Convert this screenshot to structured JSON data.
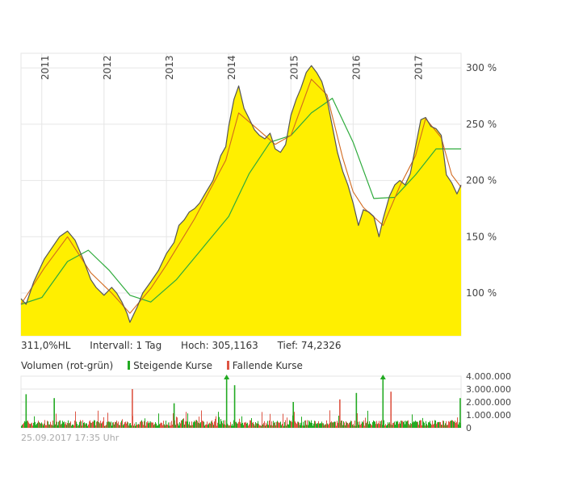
{
  "colors": {
    "area_fill": "#ffef00",
    "price_line": "#555555",
    "ma_short": "#d2691e",
    "ma_long": "#2eab3c",
    "volume_up": "#22aa22",
    "volume_down": "#dd5544",
    "grid": "#e6e6e6"
  },
  "stats": {
    "performance": "311,0%HL",
    "interval": "Intervall: 1 Tag",
    "high": "Hoch: 305,1163",
    "low": "Tief: 74,2326"
  },
  "volume_legend": {
    "title": "Volumen (rot-grün)",
    "rising": "Steigende Kurse",
    "falling": "Fallende Kurse"
  },
  "timestamp": "25.09.2017 17:35 Uhr",
  "chart_data": [
    {
      "type": "area",
      "x_axis": {
        "type": "date",
        "range": [
          "2010-09-01",
          "2017-09-25"
        ],
        "tick_labels": [
          "2011",
          "2012",
          "2013",
          "2014",
          "2015",
          "2016",
          "2017"
        ]
      },
      "y_axis": {
        "range": [
          62,
          313
        ],
        "ticks": [
          100,
          150,
          200,
          250,
          300
        ],
        "tick_labels": [
          "100 %",
          "150 %",
          "200 %",
          "250 %",
          "300 %"
        ],
        "position": "right"
      },
      "grid": true,
      "price": {
        "x": [
          "2010-09-01",
          "2010-10-01",
          "2010-11-15",
          "2011-01-15",
          "2011-03-01",
          "2011-04-15",
          "2011-06-01",
          "2011-07-15",
          "2011-09-01",
          "2011-10-15",
          "2011-11-15",
          "2012-01-01",
          "2012-02-15",
          "2012-03-15",
          "2012-04-15",
          "2012-05-15",
          "2012-06-01",
          "2012-07-15",
          "2012-08-15",
          "2012-10-01",
          "2012-11-15",
          "2013-01-01",
          "2013-02-15",
          "2013-03-15",
          "2013-04-15",
          "2013-05-15",
          "2013-06-15",
          "2013-07-15",
          "2013-08-15",
          "2013-10-01",
          "2013-11-15",
          "2013-12-15",
          "2014-01-01",
          "2014-02-01",
          "2014-03-01",
          "2014-04-01",
          "2014-05-01",
          "2014-06-01",
          "2014-07-01",
          "2014-08-01",
          "2014-09-01",
          "2014-10-01",
          "2014-11-01",
          "2014-12-01",
          "2015-01-01",
          "2015-02-01",
          "2015-03-01",
          "2015-04-01",
          "2015-05-01",
          "2015-06-01",
          "2015-07-01",
          "2015-08-01",
          "2015-09-01",
          "2015-10-01",
          "2015-11-01",
          "2015-12-01",
          "2016-01-01",
          "2016-02-01",
          "2016-03-01",
          "2016-04-01",
          "2016-05-01",
          "2016-06-01",
          "2016-06-25",
          "2016-08-01",
          "2016-09-01",
          "2016-10-01",
          "2016-11-01",
          "2016-12-01",
          "2017-01-01",
          "2017-02-01",
          "2017-03-01",
          "2017-04-01",
          "2017-05-01",
          "2017-06-01",
          "2017-07-01",
          "2017-08-01",
          "2017-09-01",
          "2017-09-25"
        ],
        "y": [
          95,
          90,
          110,
          130,
          140,
          150,
          155,
          147,
          130,
          112,
          105,
          98,
          105,
          100,
          92,
          82,
          74,
          88,
          100,
          110,
          120,
          135,
          145,
          160,
          165,
          172,
          175,
          180,
          188,
          200,
          222,
          230,
          248,
          272,
          284,
          264,
          255,
          245,
          240,
          237,
          242,
          228,
          225,
          232,
          258,
          272,
          282,
          296,
          302,
          296,
          288,
          272,
          248,
          225,
          208,
          196,
          180,
          160,
          174,
          172,
          168,
          150,
          166,
          186,
          196,
          200,
          196,
          206,
          230,
          254,
          256,
          248,
          246,
          240,
          205,
          198,
          188,
          196
        ]
      },
      "ma_short": {
        "x": [
          "2010-09-01",
          "2011-01-15",
          "2011-06-01",
          "2011-10-15",
          "2012-02-15",
          "2012-06-01",
          "2012-10-01",
          "2013-01-01",
          "2013-06-15",
          "2013-12-15",
          "2014-03-01",
          "2014-06-01",
          "2014-10-01",
          "2015-01-01",
          "2015-05-01",
          "2015-08-01",
          "2015-11-01",
          "2016-01-01",
          "2016-03-01",
          "2016-06-25",
          "2016-10-01",
          "2017-01-01",
          "2017-03-01",
          "2017-06-01",
          "2017-08-01",
          "2017-09-25"
        ],
        "y": [
          90,
          122,
          150,
          118,
          100,
          82,
          104,
          125,
          166,
          218,
          260,
          248,
          232,
          240,
          290,
          276,
          220,
          190,
          176,
          160,
          195,
          222,
          255,
          238,
          205,
          194
        ]
      },
      "ma_long": {
        "x": [
          "2010-09-01",
          "2011-01-01",
          "2011-06-01",
          "2011-10-01",
          "2012-02-01",
          "2012-06-01",
          "2012-10-01",
          "2013-03-01",
          "2013-08-01",
          "2014-01-01",
          "2014-05-01",
          "2014-09-01",
          "2015-01-01",
          "2015-05-01",
          "2015-09-01",
          "2016-01-01",
          "2016-05-01",
          "2016-09-01",
          "2017-01-01",
          "2017-05-01",
          "2017-09-25"
        ],
        "y": [
          90,
          96,
          128,
          138,
          120,
          98,
          92,
          112,
          140,
          168,
          206,
          234,
          240,
          260,
          273,
          234,
          184,
          185,
          205,
          228,
          228
        ]
      }
    },
    {
      "type": "bar",
      "title": "Volumen (rot-grün)",
      "y_axis": {
        "range": [
          0,
          4000000
        ],
        "tick_labels": [
          "4.000.000",
          "3.000.000",
          "2.000.000",
          "1.000.000",
          "0"
        ],
        "position": "right"
      },
      "series": [
        {
          "name": "Steigende Kurse",
          "color": "#22aa22"
        },
        {
          "name": "Fallende Kurse",
          "color": "#dd5544"
        }
      ],
      "spikes": [
        {
          "x": "2010-10-01",
          "value": 2600000,
          "trend": "up"
        },
        {
          "x": "2011-03-15",
          "value": 2300000,
          "trend": "up"
        },
        {
          "x": "2012-06-15",
          "value": 3000000,
          "trend": "down"
        },
        {
          "x": "2013-02-15",
          "value": 1900000,
          "trend": "up"
        },
        {
          "x": "2013-12-20",
          "value": 4000000,
          "trend": "up",
          "exceeds_axis": true
        },
        {
          "x": "2014-02-05",
          "value": 3300000,
          "trend": "up"
        },
        {
          "x": "2015-01-15",
          "value": 2000000,
          "trend": "up"
        },
        {
          "x": "2015-10-15",
          "value": 2200000,
          "trend": "down"
        },
        {
          "x": "2016-01-20",
          "value": 2700000,
          "trend": "up"
        },
        {
          "x": "2016-06-24",
          "value": 4000000,
          "trend": "up",
          "exceeds_axis": true
        },
        {
          "x": "2016-08-10",
          "value": 2800000,
          "trend": "down"
        },
        {
          "x": "2017-09-20",
          "value": 2300000,
          "trend": "up"
        }
      ]
    }
  ]
}
